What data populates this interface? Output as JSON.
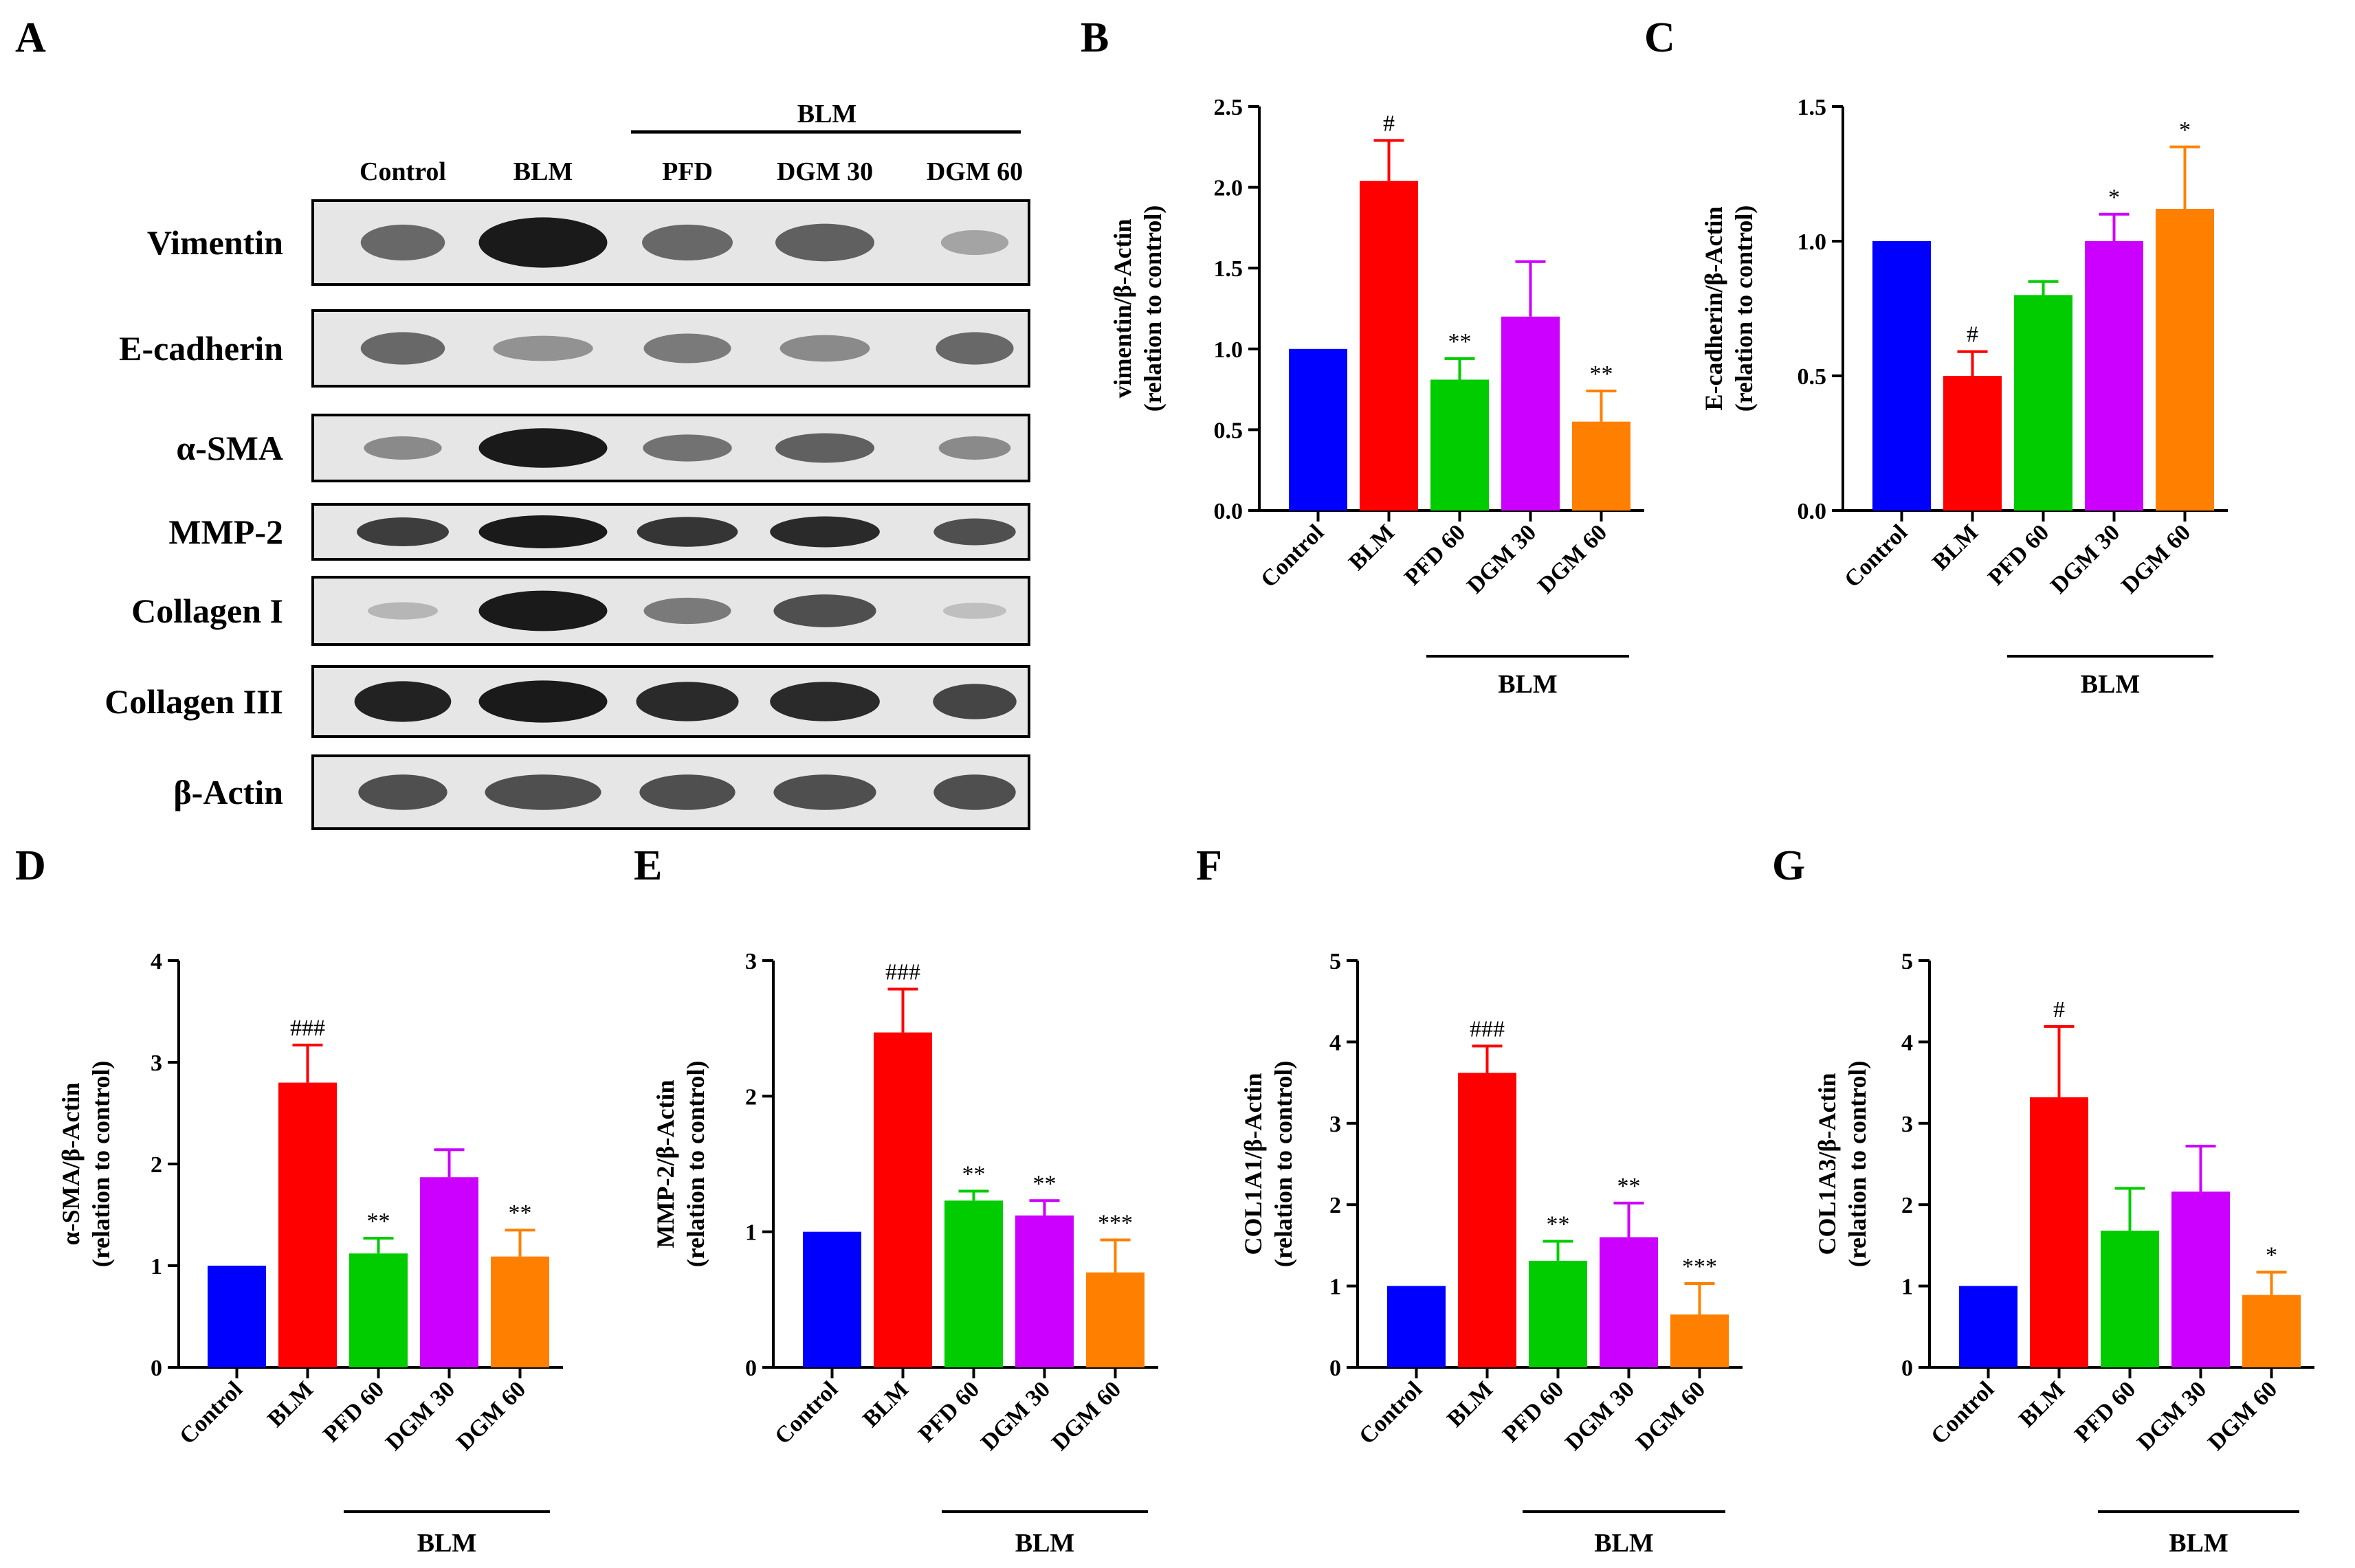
{
  "chart_data": [
    {
      "panel": "A",
      "type": "western-blot",
      "group_label": "BLM",
      "lanes": [
        "Control",
        "BLM",
        "PFD",
        "DGM 30",
        "DGM 60"
      ],
      "rows": [
        {
          "label": "Vimentin",
          "intensity": [
            0.55,
            1.0,
            0.55,
            0.6,
            0.2
          ]
        },
        {
          "label": "E-cadherin",
          "intensity": [
            0.55,
            0.3,
            0.45,
            0.35,
            0.55
          ]
        },
        {
          "label": "α-SMA",
          "intensity": [
            0.35,
            1.0,
            0.5,
            0.6,
            0.35
          ]
        },
        {
          "label": "MMP-2",
          "intensity": [
            0.8,
            1.0,
            0.85,
            0.9,
            0.7
          ]
        },
        {
          "label": "Collagen I",
          "intensity": [
            0.1,
            1.0,
            0.45,
            0.7,
            0.05
          ]
        },
        {
          "label": "Collagen III",
          "intensity": [
            0.95,
            1.0,
            0.9,
            0.9,
            0.75
          ]
        },
        {
          "label": "β-Actin",
          "intensity": [
            0.7,
            0.7,
            0.7,
            0.7,
            0.7
          ]
        }
      ]
    },
    {
      "panel": "B",
      "type": "bar",
      "ylabel": "vimentin/β-Actin",
      "ylabel2": "(relation to control)",
      "categories": [
        "Control",
        "BLM",
        "PFD 60",
        "DGM 30",
        "DGM 60"
      ],
      "values": [
        1.0,
        2.04,
        0.81,
        1.2,
        0.55
      ],
      "errors": [
        0,
        0.25,
        0.13,
        0.34,
        0.19
      ],
      "significance": [
        "",
        "#",
        "**",
        "",
        "**"
      ],
      "ylim": [
        0,
        2.5
      ],
      "yticks": [
        "0.0",
        "0.5",
        "1.0",
        "1.5",
        "2.0",
        "2.5"
      ],
      "group_label": "BLM"
    },
    {
      "panel": "C",
      "type": "bar",
      "ylabel": "E-cadherin/β-Actin",
      "ylabel2": "(relation to control)",
      "categories": [
        "Control",
        "BLM",
        "PFD 60",
        "DGM 30",
        "DGM 60"
      ],
      "values": [
        1.0,
        0.5,
        0.8,
        1.0,
        1.12
      ],
      "errors": [
        0,
        0.09,
        0.05,
        0.1,
        0.23
      ],
      "significance": [
        "",
        "#",
        "",
        "*",
        "*"
      ],
      "ylim": [
        0,
        1.5
      ],
      "yticks": [
        "0.0",
        "0.5",
        "1.0",
        "1.5"
      ],
      "group_label": "BLM"
    },
    {
      "panel": "D",
      "type": "bar",
      "ylabel": "α-SMA/β-Actin",
      "ylabel2": "(relation to control)",
      "categories": [
        "Control",
        "BLM",
        "PFD 60",
        "DGM 30",
        "DGM 60"
      ],
      "values": [
        1.0,
        2.8,
        1.12,
        1.87,
        1.09
      ],
      "errors": [
        0,
        0.37,
        0.15,
        0.27,
        0.26
      ],
      "significance": [
        "",
        "###",
        "**",
        "",
        "**"
      ],
      "ylim": [
        0,
        4
      ],
      "yticks": [
        "0",
        "1",
        "2",
        "3",
        "4"
      ],
      "group_label": "BLM"
    },
    {
      "panel": "E",
      "type": "bar",
      "ylabel": "MMP-2/β-Actin",
      "ylabel2": "(relation to control)",
      "categories": [
        "Control",
        "BLM",
        "PFD 60",
        "DGM 30",
        "DGM 60"
      ],
      "values": [
        1.0,
        2.47,
        1.23,
        1.12,
        0.7
      ],
      "errors": [
        0,
        0.32,
        0.07,
        0.11,
        0.24
      ],
      "significance": [
        "",
        "###",
        "**",
        "**",
        "***"
      ],
      "ylim": [
        0,
        3
      ],
      "yticks": [
        "0",
        "1",
        "2",
        "3"
      ],
      "group_label": "BLM"
    },
    {
      "panel": "F",
      "type": "bar",
      "ylabel": "COL1A1/β-Actin",
      "ylabel2": "(relation to control)",
      "categories": [
        "Control",
        "BLM",
        "PFD 60",
        "DGM 30",
        "DGM 60"
      ],
      "values": [
        1.0,
        3.62,
        1.31,
        1.6,
        0.65
      ],
      "errors": [
        0,
        0.33,
        0.24,
        0.42,
        0.38
      ],
      "significance": [
        "",
        "###",
        "**",
        "**",
        "***"
      ],
      "ylim": [
        0,
        5
      ],
      "yticks": [
        "0",
        "1",
        "2",
        "3",
        "4",
        "5"
      ],
      "group_label": "BLM"
    },
    {
      "panel": "G",
      "type": "bar",
      "ylabel": "COL1A3/β-Actin",
      "ylabel2": "(relation to control)",
      "categories": [
        "Control",
        "BLM",
        "PFD 60",
        "DGM 30",
        "DGM 60"
      ],
      "values": [
        1.0,
        3.32,
        1.68,
        2.16,
        0.89
      ],
      "errors": [
        0,
        0.87,
        0.52,
        0.56,
        0.28
      ],
      "significance": [
        "",
        "#",
        "",
        "",
        "*"
      ],
      "ylim": [
        0,
        5
      ],
      "yticks": [
        "0",
        "1",
        "2",
        "3",
        "4",
        "5"
      ],
      "group_label": "BLM"
    }
  ],
  "colors": {
    "bars": [
      "#0000ff",
      "#ff0000",
      "#00cc00",
      "#cc00ff",
      "#ff8000"
    ],
    "axis": "#000000",
    "band": "#1a1a1a"
  }
}
